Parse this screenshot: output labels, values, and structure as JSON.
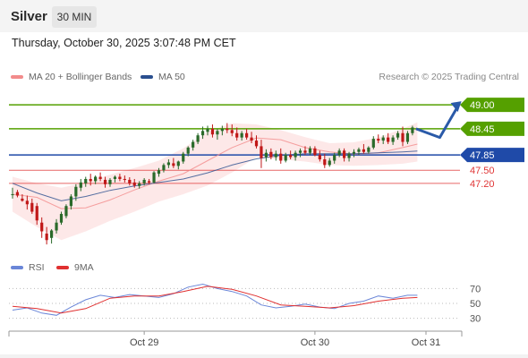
{
  "header": {
    "title": "Silver",
    "timeframe": "30 MIN"
  },
  "datetime": "Thursday, October 30, 2025 3:07:48 PM CET",
  "legend": {
    "ma20": {
      "label": "MA 20 + Bollinger Bands",
      "color": "#f28b8b"
    },
    "ma50": {
      "label": "MA 50",
      "color": "#2a4f8f"
    }
  },
  "credit": "Research © 2025 Trading Central",
  "rsi_legend": {
    "rsi": {
      "label": "RSI",
      "color": "#6a86d8"
    },
    "ma9": {
      "label": "9MA",
      "color": "#e03030"
    }
  },
  "colors": {
    "up": "#2a6a2a",
    "down": "#c01818",
    "bb_fill": "#fde4e4",
    "resistance": "#55a000",
    "pivot": "#1f4aa8",
    "support": "#e03535",
    "arrow": "#2a5aa8",
    "grid": "#cccccc"
  },
  "chart_data": [
    {
      "type": "candlestick",
      "ylim": [
        45.7,
        49.35
      ],
      "x_ticks": [
        "Oct 29",
        "Oct 30",
        "Oct 31"
      ],
      "ohlc": [
        [
          46.95,
          47.1,
          46.85,
          46.95
        ],
        [
          47.0,
          47.05,
          46.88,
          46.92
        ],
        [
          46.85,
          46.95,
          46.78,
          46.8
        ],
        [
          46.8,
          46.92,
          46.6,
          46.72
        ],
        [
          46.75,
          46.85,
          46.5,
          46.55
        ],
        [
          46.68,
          46.75,
          46.25,
          46.35
        ],
        [
          46.3,
          46.42,
          45.95,
          46.1
        ],
        [
          46.05,
          46.2,
          45.8,
          45.9
        ],
        [
          45.95,
          46.15,
          45.82,
          46.12
        ],
        [
          46.12,
          46.38,
          46.05,
          46.3
        ],
        [
          46.3,
          46.55,
          46.25,
          46.5
        ],
        [
          46.45,
          46.72,
          46.4,
          46.68
        ],
        [
          46.68,
          46.95,
          46.6,
          46.9
        ],
        [
          46.9,
          47.18,
          46.8,
          47.12
        ],
        [
          47.1,
          47.3,
          47.02,
          47.22
        ],
        [
          47.2,
          47.35,
          47.12,
          47.3
        ],
        [
          47.3,
          47.42,
          47.15,
          47.25
        ],
        [
          47.25,
          47.38,
          47.18,
          47.35
        ],
        [
          47.35,
          47.45,
          47.25,
          47.3
        ],
        [
          47.28,
          47.35,
          47.1,
          47.18
        ],
        [
          47.18,
          47.32,
          47.12,
          47.28
        ],
        [
          47.3,
          47.38,
          47.22,
          47.35
        ],
        [
          47.35,
          47.42,
          47.25,
          47.3
        ],
        [
          47.3,
          47.38,
          47.22,
          47.28
        ],
        [
          47.28,
          47.34,
          47.15,
          47.2
        ],
        [
          47.22,
          47.3,
          47.1,
          47.15
        ],
        [
          47.14,
          47.25,
          47.08,
          47.2
        ],
        [
          47.2,
          47.32,
          47.15,
          47.28
        ],
        [
          47.25,
          47.3,
          47.18,
          47.22
        ],
        [
          47.22,
          47.48,
          47.2,
          47.45
        ],
        [
          47.42,
          47.55,
          47.35,
          47.5
        ],
        [
          47.5,
          47.66,
          47.45,
          47.62
        ],
        [
          47.62,
          47.75,
          47.55,
          47.68
        ],
        [
          47.66,
          47.78,
          47.55,
          47.6
        ],
        [
          47.6,
          47.72,
          47.52,
          47.7
        ],
        [
          47.7,
          47.92,
          47.65,
          47.88
        ],
        [
          47.88,
          48.05,
          47.82,
          48.02
        ],
        [
          48.02,
          48.2,
          47.95,
          48.15
        ],
        [
          48.15,
          48.35,
          48.1,
          48.3
        ],
        [
          48.3,
          48.5,
          48.22,
          48.4
        ],
        [
          48.38,
          48.52,
          48.3,
          48.45
        ],
        [
          48.45,
          48.55,
          48.25,
          48.32
        ],
        [
          48.32,
          48.45,
          48.2,
          48.4
        ],
        [
          48.4,
          48.52,
          48.3,
          48.45
        ],
        [
          48.45,
          48.58,
          48.35,
          48.42
        ],
        [
          48.42,
          48.55,
          48.28,
          48.35
        ],
        [
          48.35,
          48.48,
          48.18,
          48.25
        ],
        [
          48.25,
          48.4,
          48.18,
          48.35
        ],
        [
          48.35,
          48.45,
          48.2,
          48.25
        ],
        [
          48.25,
          48.38,
          48.12,
          48.18
        ],
        [
          48.18,
          48.3,
          48.0,
          48.05
        ],
        [
          48.05,
          48.2,
          47.55,
          47.78
        ],
        [
          47.8,
          47.98,
          47.7,
          47.9
        ],
        [
          47.92,
          48.0,
          47.75,
          47.8
        ],
        [
          47.8,
          47.95,
          47.72,
          47.88
        ],
        [
          47.88,
          48.0,
          47.65,
          47.72
        ],
        [
          47.72,
          47.9,
          47.68,
          47.85
        ],
        [
          47.85,
          47.95,
          47.75,
          47.8
        ],
        [
          47.8,
          47.95,
          47.72,
          47.9
        ],
        [
          47.9,
          48.0,
          47.8,
          47.95
        ],
        [
          47.95,
          48.05,
          47.85,
          47.9
        ],
        [
          47.9,
          48.05,
          47.85,
          48.0
        ],
        [
          48.0,
          48.05,
          47.82,
          47.85
        ],
        [
          47.85,
          47.95,
          47.7,
          47.75
        ],
        [
          47.75,
          47.88,
          47.55,
          47.62
        ],
        [
          47.62,
          47.78,
          47.58,
          47.72
        ],
        [
          47.72,
          47.9,
          47.65,
          47.85
        ],
        [
          47.85,
          48.0,
          47.8,
          47.95
        ],
        [
          47.95,
          48.0,
          47.7,
          47.78
        ],
        [
          47.78,
          47.92,
          47.7,
          47.88
        ],
        [
          47.88,
          47.98,
          47.8,
          47.92
        ],
        [
          47.92,
          48.02,
          47.85,
          47.98
        ],
        [
          47.98,
          48.1,
          47.88,
          47.92
        ],
        [
          47.92,
          48.05,
          47.88,
          48.02
        ],
        [
          48.02,
          48.28,
          47.98,
          48.22
        ],
        [
          48.22,
          48.32,
          48.12,
          48.18
        ],
        [
          48.18,
          48.3,
          48.1,
          48.25
        ],
        [
          48.25,
          48.35,
          48.1,
          48.15
        ],
        [
          48.15,
          48.3,
          48.08,
          48.25
        ],
        [
          48.25,
          48.4,
          48.2,
          48.35
        ],
        [
          48.35,
          48.5,
          48.05,
          48.15
        ],
        [
          48.15,
          48.4,
          48.1,
          48.35
        ],
        [
          48.35,
          48.52,
          48.3,
          48.48
        ]
      ],
      "ma20": [
        [
          0,
          46.95
        ],
        [
          5,
          46.88
        ],
        [
          10,
          46.62
        ],
        [
          15,
          46.64
        ],
        [
          20,
          46.82
        ],
        [
          25,
          47.05
        ],
        [
          30,
          47.25
        ],
        [
          35,
          47.42
        ],
        [
          40,
          47.72
        ],
        [
          45,
          48.02
        ],
        [
          50,
          48.24
        ],
        [
          55,
          48.2
        ],
        [
          60,
          48.02
        ],
        [
          65,
          47.92
        ],
        [
          70,
          47.87
        ],
        [
          75,
          47.9
        ],
        [
          80,
          48.02
        ],
        [
          83,
          48.1
        ]
      ],
      "ma50": [
        [
          0,
          47.2
        ],
        [
          5,
          46.98
        ],
        [
          10,
          46.8
        ],
        [
          15,
          46.9
        ],
        [
          20,
          47.04
        ],
        [
          25,
          47.14
        ],
        [
          30,
          47.22
        ],
        [
          35,
          47.3
        ],
        [
          40,
          47.44
        ],
        [
          45,
          47.62
        ],
        [
          50,
          47.76
        ],
        [
          55,
          47.84
        ],
        [
          60,
          47.88
        ],
        [
          65,
          47.88
        ],
        [
          70,
          47.88
        ],
        [
          75,
          47.9
        ],
        [
          80,
          47.92
        ],
        [
          83,
          47.94
        ]
      ],
      "bb_upper": [
        [
          0,
          47.35
        ],
        [
          5,
          47.2
        ],
        [
          10,
          47.1
        ],
        [
          15,
          47.22
        ],
        [
          20,
          47.4
        ],
        [
          25,
          47.55
        ],
        [
          30,
          47.72
        ],
        [
          35,
          48.0
        ],
        [
          40,
          48.38
        ],
        [
          45,
          48.58
        ],
        [
          50,
          48.55
        ],
        [
          55,
          48.42
        ],
        [
          60,
          48.26
        ],
        [
          65,
          48.12
        ],
        [
          70,
          48.14
        ],
        [
          75,
          48.25
        ],
        [
          80,
          48.45
        ],
        [
          83,
          48.6
        ]
      ],
      "bb_lower": [
        [
          0,
          46.55
        ],
        [
          5,
          46.2
        ],
        [
          10,
          45.9
        ],
        [
          15,
          46.1
        ],
        [
          20,
          46.34
        ],
        [
          25,
          46.55
        ],
        [
          30,
          46.78
        ],
        [
          35,
          46.95
        ],
        [
          40,
          47.15
        ],
        [
          45,
          47.45
        ],
        [
          50,
          47.8
        ],
        [
          55,
          47.75
        ],
        [
          60,
          47.7
        ],
        [
          65,
          47.62
        ],
        [
          70,
          47.6
        ],
        [
          75,
          47.62
        ],
        [
          80,
          47.65
        ],
        [
          83,
          47.7
        ]
      ],
      "levels": [
        {
          "value": 49.0,
          "label": "49.00",
          "kind": "resistance"
        },
        {
          "value": 48.45,
          "label": "48.45",
          "kind": "resistance"
        },
        {
          "value": 47.85,
          "label": "47.85",
          "kind": "pivot"
        },
        {
          "value": 47.5,
          "label": "47.50",
          "kind": "support"
        },
        {
          "value": 47.2,
          "label": "47.20",
          "kind": "support"
        }
      ],
      "scenario_arrow": [
        [
          48.45,
          0
        ],
        [
          48.25,
          5
        ],
        [
          49.0,
          9
        ]
      ]
    },
    {
      "type": "line",
      "ylim": [
        15,
        85
      ],
      "y_ticks": [
        70,
        50,
        30
      ],
      "rsi": [
        [
          0,
          41
        ],
        [
          3,
          44
        ],
        [
          6,
          37
        ],
        [
          9,
          34
        ],
        [
          12,
          45
        ],
        [
          15,
          55
        ],
        [
          18,
          61
        ],
        [
          21,
          58
        ],
        [
          24,
          62
        ],
        [
          27,
          60
        ],
        [
          30,
          58
        ],
        [
          33,
          63
        ],
        [
          36,
          72
        ],
        [
          39,
          76
        ],
        [
          42,
          70
        ],
        [
          45,
          66
        ],
        [
          48,
          60
        ],
        [
          51,
          48
        ],
        [
          54,
          44
        ],
        [
          57,
          46
        ],
        [
          60,
          49
        ],
        [
          63,
          45
        ],
        [
          66,
          43
        ],
        [
          69,
          50
        ],
        [
          72,
          53
        ],
        [
          75,
          60
        ],
        [
          78,
          57
        ],
        [
          81,
          61
        ],
        [
          83,
          61
        ]
      ],
      "ma9": [
        [
          0,
          46
        ],
        [
          5,
          43
        ],
        [
          10,
          37
        ],
        [
          15,
          43
        ],
        [
          20,
          57
        ],
        [
          25,
          60
        ],
        [
          30,
          60
        ],
        [
          35,
          66
        ],
        [
          40,
          73
        ],
        [
          45,
          69
        ],
        [
          50,
          60
        ],
        [
          55,
          48
        ],
        [
          60,
          46
        ],
        [
          65,
          44
        ],
        [
          70,
          47
        ],
        [
          75,
          53
        ],
        [
          80,
          57
        ],
        [
          83,
          58
        ]
      ]
    }
  ]
}
